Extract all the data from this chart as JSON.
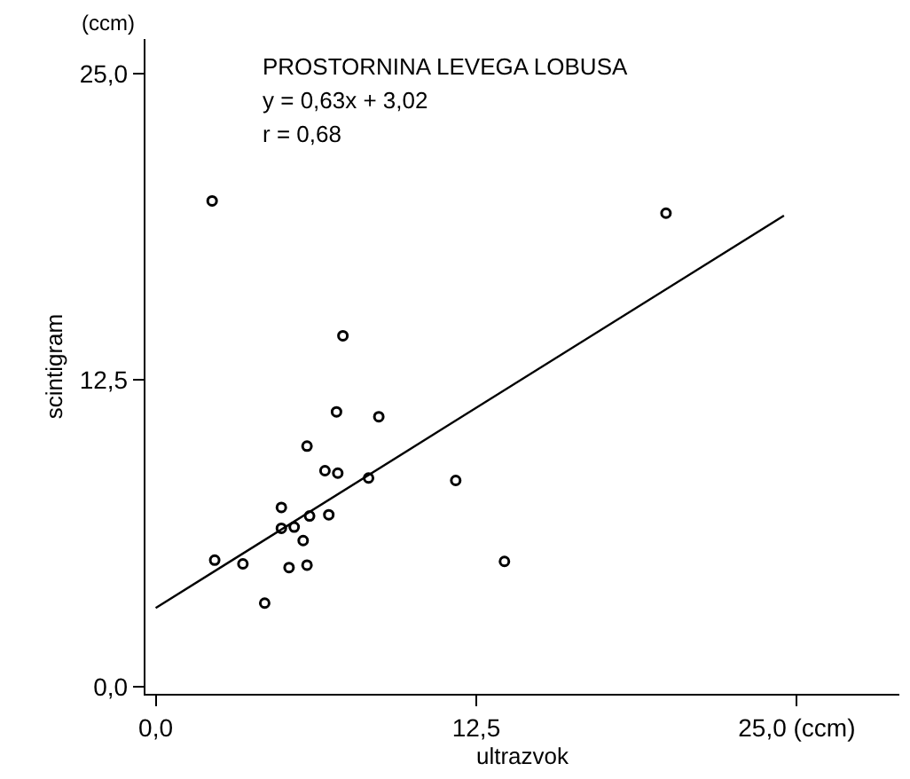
{
  "chart_data": {
    "type": "scatter",
    "title": "PROSTORNINA LEVEGA LOBUSA",
    "annotations": [
      "y = 0,63x + 3,02",
      "r = 0,68",
      "(ccm)"
    ],
    "xlabel": "ultrazvok",
    "ylabel": "scintigram",
    "xlim": [
      -0.4,
      29.0
    ],
    "ylim": [
      -0.3,
      26.4
    ],
    "xticks": [
      {
        "value": 0,
        "label": "0,0"
      },
      {
        "value": 12.5,
        "label": "12,5"
      },
      {
        "value": 25,
        "label": "25,0 (ccm)"
      }
    ],
    "yticks": [
      {
        "value": 0,
        "label": "0,0"
      },
      {
        "value": 12.5,
        "label": "12,5"
      },
      {
        "value": 25,
        "label": "25,0"
      }
    ],
    "marker": "circle",
    "series": [
      {
        "color": "#000000",
        "x": [
          2.2,
          19.9,
          7.3,
          7.05,
          8.7,
          5.9,
          6.6,
          7.1,
          8.3,
          11.7,
          4.9,
          6.75,
          6.0,
          4.9,
          5.4,
          5.75,
          2.3,
          3.4,
          5.2,
          5.9,
          13.6,
          4.25
        ],
        "values": [
          19.8,
          19.3,
          14.3,
          11.2,
          11.0,
          9.8,
          8.8,
          8.7,
          8.5,
          8.4,
          7.3,
          7.0,
          6.95,
          6.45,
          6.5,
          5.95,
          5.15,
          5.0,
          4.85,
          4.95,
          5.1,
          3.4
        ]
      },
      {
        "type": "line",
        "color": "#000000",
        "marker": "none",
        "line_style": "solid",
        "x": [
          0,
          24.5
        ],
        "values": [
          3.2,
          19.2
        ]
      }
    ]
  }
}
